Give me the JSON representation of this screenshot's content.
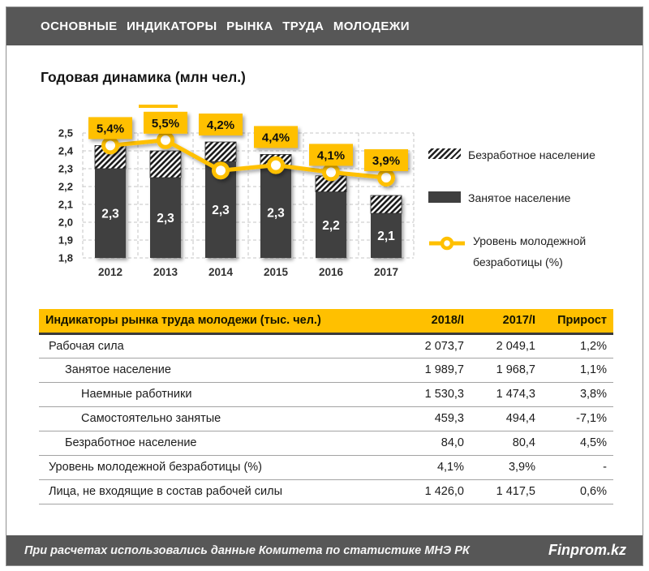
{
  "header": {
    "title": "ОСНОВНЫЕ ИНДИКАТОРЫ РЫНКА ТРУДА МОЛОДЕЖИ"
  },
  "chart_data": {
    "type": "bar+line",
    "title": "Годовая динамика (млн чел.)",
    "categories": [
      "2012",
      "2013",
      "2014",
      "2015",
      "2016",
      "2017"
    ],
    "series": [
      {
        "name": "Занятое население",
        "type": "bar",
        "values": [
          2.3,
          2.3,
          2.3,
          2.3,
          2.2,
          2.1
        ],
        "labels": [
          "2,3",
          "2,3",
          "2,3",
          "2,3",
          "2,2",
          "2,1"
        ],
        "plot_values": [
          2.3,
          2.25,
          2.34,
          2.31,
          2.17,
          2.05
        ]
      },
      {
        "name": "Безработное население",
        "type": "bar-hatched-stacked",
        "plot_top_values": [
          2.43,
          2.4,
          2.45,
          2.38,
          2.26,
          2.15
        ]
      },
      {
        "name": "Уровень молодежной безработицы (%)",
        "type": "line",
        "values": [
          5.4,
          5.5,
          4.2,
          4.4,
          4.1,
          3.9
        ],
        "labels": [
          "5,4%",
          "5,5%",
          "4,2%",
          "4,4%",
          "4,1%",
          "3,9%"
        ],
        "plot_values": [
          2.43,
          2.46,
          2.29,
          2.32,
          2.28,
          2.25
        ]
      }
    ],
    "ylim": [
      1.8,
      2.5
    ],
    "yticks": [
      "2,5",
      "2,4",
      "2,3",
      "2,2",
      "2,1",
      "2,0",
      "1,9",
      "1,8"
    ],
    "grid": true,
    "legend_position": "right"
  },
  "table": {
    "header": {
      "label": "Индикаторы рынка труда молодежи (тыс. чел.)",
      "cols": [
        "2018/I",
        "2017/I",
        "Прирост"
      ]
    },
    "rows": [
      {
        "label": "Рабочая сила",
        "indent": 0,
        "v2018": "2 073,7",
        "v2017": "2 049,1",
        "growth": "1,2%"
      },
      {
        "label": "Занятое население",
        "indent": 1,
        "v2018": "1 989,7",
        "v2017": "1 968,7",
        "growth": "1,1%"
      },
      {
        "label": "Наемные работники",
        "indent": 2,
        "v2018": "1 530,3",
        "v2017": "1 474,3",
        "growth": "3,8%"
      },
      {
        "label": "Самостоятельно занятые",
        "indent": 2,
        "v2018": "459,3",
        "v2017": "494,4",
        "growth": "-7,1%"
      },
      {
        "label": "Безработное население",
        "indent": 1,
        "v2018": "84,0",
        "v2017": "80,4",
        "growth": "4,5%"
      },
      {
        "label": "Уровень молодежной безработицы (%)",
        "indent": 0,
        "v2018": "4,1%",
        "v2017": "3,9%",
        "growth": "-"
      },
      {
        "label": "Лица, не входящие в состав рабочей силы",
        "indent": 0,
        "v2018": "1 426,0",
        "v2017": "1 417,5",
        "growth": "0,6%"
      }
    ]
  },
  "footer": {
    "note": "При расчетах использовались данные Комитета по статистике МНЭ РК",
    "brand": "Finprom.kz"
  },
  "colors": {
    "accent": "#FFC000",
    "bar": "#3F3F3F",
    "band": "#575757",
    "grid": "#C6C6C6"
  }
}
